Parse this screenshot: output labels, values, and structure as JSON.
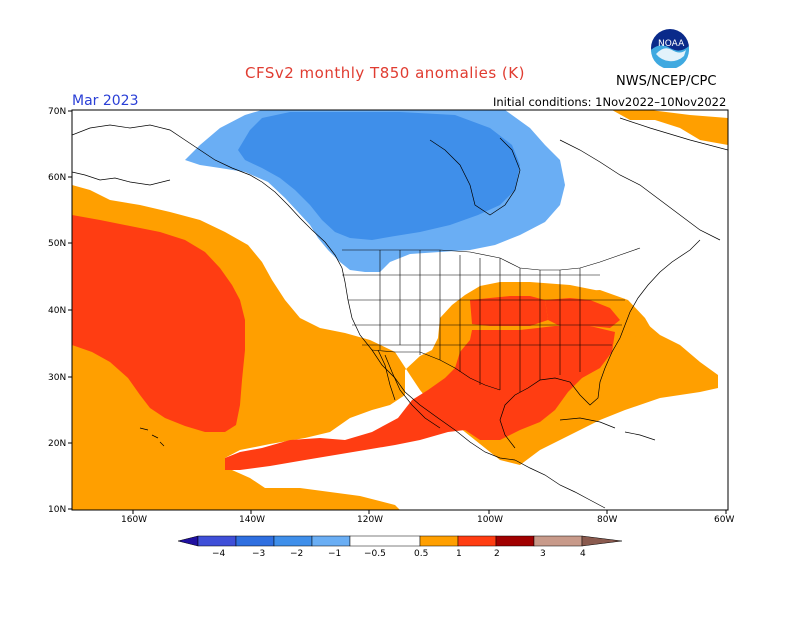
{
  "title": "CFSv2 monthly T850 anomalies (K)",
  "agency": "NWS/NCEP/CPC",
  "valid_month": "Mar 2023",
  "initial_conditions": "Initial conditions: 1Nov2022–10Nov2022",
  "logo_text": "NOAA",
  "latitude_labels": [
    "70N",
    "60N",
    "50N",
    "40N",
    "30N",
    "20N",
    "10N"
  ],
  "longitude_labels": [
    "160W",
    "140W",
    "120W",
    "100W",
    "80W",
    "60W"
  ],
  "colorbar": {
    "ticks": [
      "−4",
      "−3",
      "−2",
      "−1",
      "−0.5",
      "0.5",
      "1",
      "2",
      "3",
      "4"
    ],
    "colors": [
      "#2010a0",
      "#3f4fd8",
      "#2f6fe0",
      "#3f8fea",
      "#6aaef4",
      "#ffffff",
      "#ff9f00",
      "#ff3d12",
      "#a00000",
      "#c89a8a",
      "#8a5a4e"
    ]
  },
  "legend_colors": {
    "neg_strong": "#3f8fea",
    "neg_weak": "#6aaef4",
    "pos_weak": "#ff9f00",
    "pos_strong": "#ff3d12"
  }
}
